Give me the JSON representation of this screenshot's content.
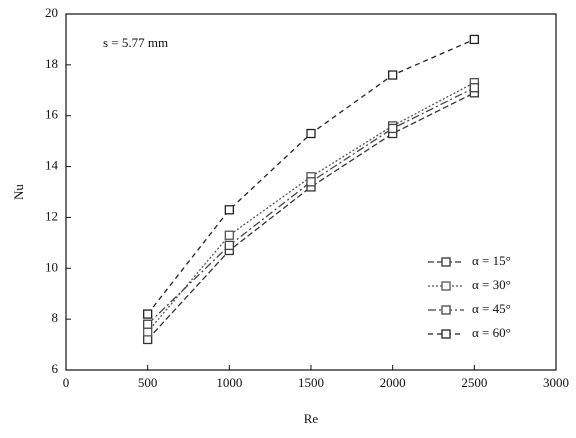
{
  "chart_data": {
    "type": "line",
    "annotation": "s = 5.77 mm",
    "x_label": "Re",
    "y_label": "Nu",
    "x": [
      500,
      1000,
      1500,
      2000,
      2500
    ],
    "series": [
      {
        "name": "α = 15°",
        "color": "#333333",
        "dash": "6 3",
        "values": [
          7.2,
          10.7,
          13.2,
          15.3,
          16.9
        ]
      },
      {
        "name": "α = 30°",
        "color": "#555555",
        "dash": "2 2",
        "values": [
          7.5,
          11.3,
          13.6,
          15.6,
          17.3
        ]
      },
      {
        "name": "α = 45°",
        "color": "#444444",
        "dash": "8 3 2 3",
        "values": [
          7.8,
          10.9,
          13.4,
          15.5,
          17.1
        ]
      },
      {
        "name": "α = 60°",
        "color": "#222222",
        "dash": "5 4",
        "values": [
          8.2,
          12.3,
          15.3,
          17.6,
          19.0
        ]
      }
    ],
    "xlim": [
      0,
      3000
    ],
    "xticks": [
      0,
      500,
      1000,
      1500,
      2000,
      2500,
      3000
    ],
    "ylim": [
      6,
      20
    ],
    "yticks": [
      6,
      8,
      10,
      12,
      14,
      16,
      18,
      20
    ],
    "legend": "lower right"
  }
}
